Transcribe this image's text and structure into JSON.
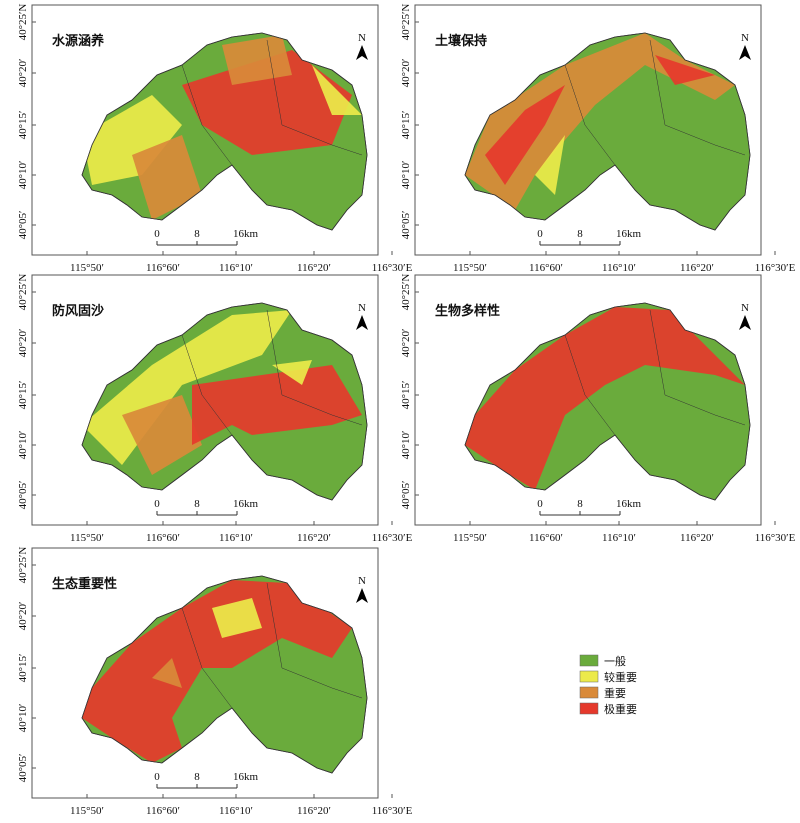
{
  "panels": [
    {
      "title": "水源涵养"
    },
    {
      "title": "土壤保持"
    },
    {
      "title": "防风固沙"
    },
    {
      "title": "生物多样性"
    },
    {
      "title": "生态重要性"
    }
  ],
  "longitude_labels": [
    "115°50′",
    "116°60′",
    "116°10′",
    "116°20′",
    "116°30′E"
  ],
  "latitude_labels": [
    "40°25′N",
    "40°20′",
    "40°15′",
    "40°10′",
    "40°05′"
  ],
  "scale_bar": [
    "0",
    "8",
    "16km"
  ],
  "north_label": "N",
  "legend": [
    {
      "label": "一般",
      "color": "#6aab3c"
    },
    {
      "label": "较重要",
      "color": "#ecea4a"
    },
    {
      "label": "重要",
      "color": "#d98a3a"
    },
    {
      "label": "极重要",
      "color": "#e5392c"
    }
  ]
}
